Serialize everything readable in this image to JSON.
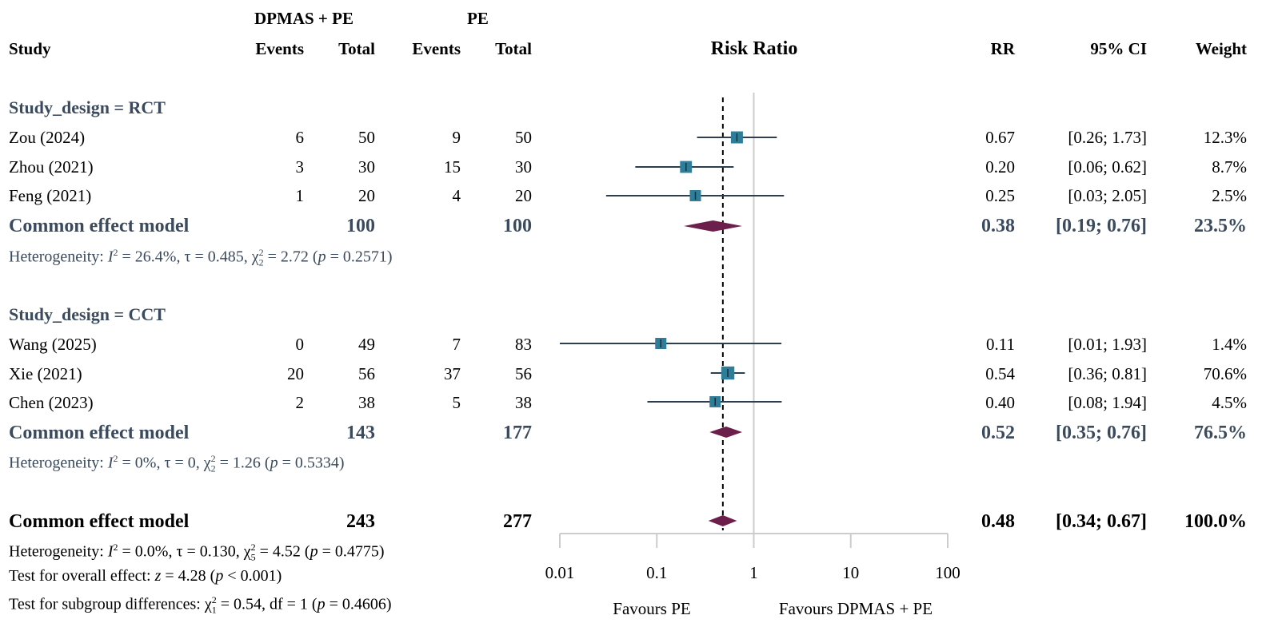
{
  "header": {
    "group_exp": "DPMAS + PE",
    "group_ctl": "PE",
    "study": "Study",
    "events": "Events",
    "total": "Total",
    "risk_ratio": "Risk Ratio",
    "rr": "RR",
    "ci": "95% CI",
    "weight": "Weight"
  },
  "subgroups": [
    {
      "label": "Study_design = RCT",
      "studies": [
        {
          "name": "Zou (2024)",
          "e_exp": "6",
          "n_exp": "50",
          "e_ctl": "9",
          "n_ctl": "50",
          "rr": "0.67",
          "ci": "[0.26; 1.73]",
          "weight": "12.3%"
        },
        {
          "name": "Zhou (2021)",
          "e_exp": "3",
          "n_exp": "30",
          "e_ctl": "15",
          "n_ctl": "30",
          "rr": "0.20",
          "ci": "[0.06; 0.62]",
          "weight": "8.7%"
        },
        {
          "name": "Feng (2021)",
          "e_exp": "1",
          "n_exp": "20",
          "e_ctl": "4",
          "n_ctl": "20",
          "rr": "0.25",
          "ci": "[0.03; 2.05]",
          "weight": "2.5%"
        }
      ],
      "summary": {
        "label": "Common effect model",
        "n_exp": "100",
        "n_ctl": "100",
        "rr": "0.38",
        "ci": "[0.19; 0.76]",
        "weight": "23.5%"
      },
      "het": {
        "pre": "Heterogeneity: ",
        "i2": "I",
        "i2v": " = 26.4%, τ = 0.485, χ",
        "df": "2",
        "chi": " = 2.72 (",
        "p": "p",
        "pv": " = 0.2571)"
      }
    },
    {
      "label": "Study_design = CCT",
      "studies": [
        {
          "name": "Wang (2025)",
          "e_exp": "0",
          "n_exp": "49",
          "e_ctl": "7",
          "n_ctl": "83",
          "rr": "0.11",
          "ci": "[0.01; 1.93]",
          "weight": "1.4%"
        },
        {
          "name": "Xie (2021)",
          "e_exp": "20",
          "n_exp": "56",
          "e_ctl": "37",
          "n_ctl": "56",
          "rr": "0.54",
          "ci": "[0.36; 0.81]",
          "weight": "70.6%"
        },
        {
          "name": "Chen (2023)",
          "e_exp": "2",
          "n_exp": "38",
          "e_ctl": "5",
          "n_ctl": "38",
          "rr": "0.40",
          "ci": "[0.08; 1.94]",
          "weight": "4.5%"
        }
      ],
      "summary": {
        "label": "Common effect model",
        "n_exp": "143",
        "n_ctl": "177",
        "rr": "0.52",
        "ci": "[0.35; 0.76]",
        "weight": "76.5%"
      },
      "het": {
        "pre": "Heterogeneity: ",
        "i2": "I",
        "i2v": " = 0%, τ = 0, χ",
        "df": "2",
        "chi": " = 1.26 (",
        "p": "p",
        "pv": " = 0.5334)"
      }
    }
  ],
  "overall": {
    "label": "Common effect model",
    "n_exp": "243",
    "n_ctl": "277",
    "rr": "0.48",
    "ci": "[0.34; 0.67]",
    "weight": "100.0%",
    "het": {
      "pre": "Heterogeneity: ",
      "i2": "I",
      "i2v": " = 0.0%, τ = 0.130, χ",
      "df": "5",
      "chi": " = 4.52 (",
      "p": "p",
      "pv": " = 0.4775)"
    },
    "test_overall": {
      "pre": "Test for overall effect: ",
      "z": "z",
      "zv": " = 4.28 (",
      "p": "p",
      "pv": " < 0.001)"
    },
    "test_subgroup": {
      "pre": "Test for subgroup differences: χ",
      "df": "1",
      "rest": " = 0.54, df = 1 (",
      "p": "p",
      "pv": " = 0.4606)"
    }
  },
  "colors": {
    "square": "#2e7d99",
    "diamond": "#6b1f4a",
    "line": "#2f3e4e",
    "axis": "#cccccc",
    "label": "#3b4a5c"
  },
  "chart_data": {
    "type": "forest",
    "scale": "log",
    "title": "Risk Ratio",
    "xlim": [
      0.01,
      100
    ],
    "ticks": [
      0.01,
      0.1,
      1,
      10,
      100
    ],
    "tick_labels": [
      "0.01",
      "0.1",
      "1",
      "10",
      "100"
    ],
    "favours_left": "Favours PE",
    "favours_right": "Favours DPMAS + PE",
    "null_value": 1,
    "pooled_line": 0.48,
    "studies": [
      {
        "name": "Zou (2024)",
        "rr": 0.67,
        "lower": 0.26,
        "upper": 1.73,
        "weight": 12.3
      },
      {
        "name": "Zhou (2021)",
        "rr": 0.2,
        "lower": 0.06,
        "upper": 0.62,
        "weight": 8.7
      },
      {
        "name": "Feng (2021)",
        "rr": 0.25,
        "lower": 0.03,
        "upper": 2.05,
        "weight": 2.5
      },
      {
        "name": "Wang (2025)",
        "rr": 0.11,
        "lower": 0.01,
        "upper": 1.93,
        "weight": 1.4
      },
      {
        "name": "Xie (2021)",
        "rr": 0.54,
        "lower": 0.36,
        "upper": 0.81,
        "weight": 70.6
      },
      {
        "name": "Chen (2023)",
        "rr": 0.4,
        "lower": 0.08,
        "upper": 1.94,
        "weight": 4.5
      }
    ],
    "summaries": [
      {
        "name": "RCT common effect",
        "rr": 0.38,
        "lower": 0.19,
        "upper": 0.76
      },
      {
        "name": "CCT common effect",
        "rr": 0.52,
        "lower": 0.35,
        "upper": 0.76
      },
      {
        "name": "Overall common effect",
        "rr": 0.48,
        "lower": 0.34,
        "upper": 0.67
      }
    ]
  }
}
